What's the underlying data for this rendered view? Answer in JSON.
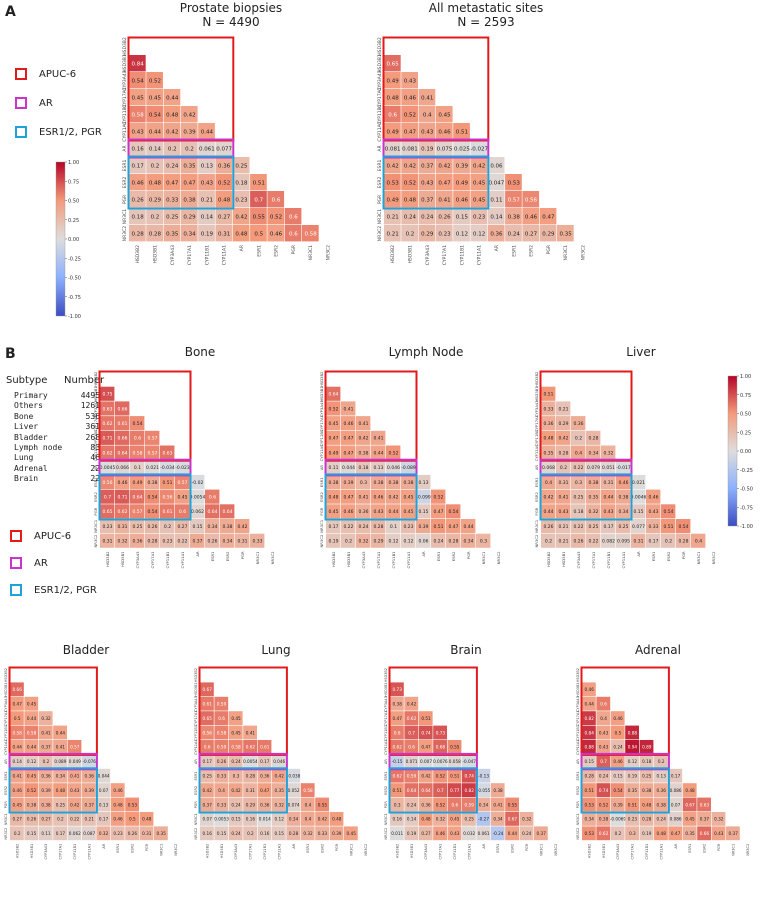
{
  "panels": {
    "a": "A",
    "b": "B"
  },
  "legend": {
    "items": [
      {
        "label": "APUC-6",
        "color": "#e31a1c"
      },
      {
        "label": "AR",
        "color": "#cc33cc"
      },
      {
        "label": "ESR1/2, PGR",
        "color": "#1fa2d9"
      }
    ]
  },
  "colorbar": {
    "ticks": [
      "1.00",
      "0.75",
      "0.50",
      "0.25",
      "0.00",
      "-0.25",
      "-0.50",
      "-0.75",
      "-1.00"
    ]
  },
  "subtype_table": {
    "header": [
      "Subtype",
      "Number"
    ],
    "rows": [
      [
        "Primary",
        "4495"
      ],
      [
        "Others",
        "1261"
      ],
      [
        "Bone",
        "536"
      ],
      [
        "Liver",
        "361"
      ],
      [
        "Bladder",
        "268"
      ],
      [
        "Lymph node",
        "83"
      ],
      [
        "Lung",
        "46"
      ],
      [
        "Adrenal",
        "22"
      ],
      [
        "Brain",
        "22"
      ]
    ]
  },
  "genes": [
    "HSD3B2",
    "HSD3B1",
    "CYP3A43",
    "CYP17A1",
    "CYP11B1",
    "CYP11A1",
    "AR",
    "ESR1",
    "ESR2",
    "PGR",
    "NR3C1",
    "NR3C2"
  ],
  "chart_data": [
    {
      "type": "heatmap",
      "title": "Prostate biopsies",
      "subtitle": "N = 4490",
      "values": [
        [
          0.84
        ],
        [
          0.54,
          0.52
        ],
        [
          0.45,
          0.45,
          0.44
        ],
        [
          0.58,
          0.54,
          0.48,
          0.42
        ],
        [
          0.43,
          0.44,
          0.42,
          0.39,
          0.44
        ],
        [
          0.16,
          0.14,
          0.2,
          0.2,
          0.061,
          0.077
        ],
        [
          0.17,
          0.2,
          0.24,
          0.35,
          0.13,
          0.36,
          0.25
        ],
        [
          0.46,
          0.48,
          0.47,
          0.47,
          0.43,
          0.52,
          0.18,
          0.51
        ],
        [
          0.26,
          0.29,
          0.33,
          0.38,
          0.21,
          0.48,
          0.23,
          0.7,
          0.6
        ],
        [
          0.18,
          0.2,
          0.25,
          0.29,
          0.14,
          0.27,
          0.42,
          0.55,
          0.52,
          0.6
        ],
        [
          0.28,
          0.28,
          0.35,
          0.34,
          0.19,
          0.31,
          0.48,
          0.5,
          0.46,
          0.6,
          0.58
        ]
      ]
    },
    {
      "type": "heatmap",
      "title": "All metastatic sites",
      "subtitle": "N = 2593",
      "values": [
        [
          0.65
        ],
        [
          0.49,
          0.43
        ],
        [
          0.48,
          0.46,
          0.41
        ],
        [
          0.6,
          0.52,
          0.4,
          0.45
        ],
        [
          0.49,
          0.47,
          0.43,
          0.46,
          0.51
        ],
        [
          0.081,
          0.081,
          0.19,
          0.075,
          0.025,
          -0.027
        ],
        [
          0.42,
          0.42,
          0.37,
          0.42,
          0.39,
          0.42,
          0.06
        ],
        [
          0.53,
          0.52,
          0.43,
          0.47,
          0.49,
          0.45,
          0.047,
          0.53
        ],
        [
          0.49,
          0.48,
          0.37,
          0.41,
          0.46,
          0.45,
          0.11,
          0.57,
          0.56
        ],
        [
          0.21,
          0.24,
          0.24,
          0.26,
          0.15,
          0.23,
          0.14,
          0.38,
          0.46,
          0.47
        ],
        [
          0.21,
          0.2,
          0.29,
          0.23,
          0.12,
          0.12,
          0.36,
          0.24,
          0.27,
          0.29,
          0.35
        ]
      ]
    },
    {
      "type": "heatmap",
      "title": "Bone",
      "subtitle": "",
      "values": [
        [
          0.75
        ],
        [
          0.63,
          0.66
        ],
        [
          0.62,
          0.61,
          0.54
        ],
        [
          0.71,
          0.66,
          0.6,
          0.57
        ],
        [
          0.62,
          0.64,
          0.58,
          0.57,
          0.63
        ],
        [
          0.0045,
          0.066,
          0.1,
          0.021,
          -0.034,
          -0.023
        ],
        [
          0.56,
          0.46,
          0.49,
          0.38,
          0.51,
          0.57,
          -0.02
        ],
        [
          0.7,
          0.71,
          0.64,
          0.54,
          0.56,
          0.45,
          0.0054,
          0.6
        ],
        [
          0.65,
          0.62,
          0.57,
          0.54,
          0.61,
          0.6,
          0.062,
          0.64,
          0.64
        ],
        [
          0.23,
          0.31,
          0.25,
          0.26,
          0.2,
          0.27,
          0.15,
          0.34,
          0.38,
          0.42
        ],
        [
          0.31,
          0.32,
          0.36,
          0.28,
          0.23,
          0.22,
          0.37,
          0.26,
          0.34,
          0.31,
          0.33
        ]
      ]
    },
    {
      "type": "heatmap",
      "title": "Lymph Node",
      "subtitle": "",
      "values": [
        [
          0.64
        ],
        [
          0.52,
          0.41
        ],
        [
          0.45,
          0.46,
          0.41
        ],
        [
          0.47,
          0.47,
          0.42,
          0.41
        ],
        [
          0.49,
          0.47,
          0.38,
          0.44,
          0.52
        ],
        [
          0.11,
          0.044,
          0.18,
          0.13,
          0.046,
          -0.089
        ],
        [
          0.38,
          0.39,
          0.3,
          0.38,
          0.38,
          0.38,
          0.13
        ],
        [
          0.48,
          0.47,
          0.41,
          0.46,
          0.42,
          0.45,
          -0.099,
          0.52
        ],
        [
          0.45,
          0.46,
          0.36,
          0.43,
          0.44,
          0.45,
          0.15,
          0.47,
          0.54
        ],
        [
          0.17,
          0.22,
          0.24,
          0.28,
          0.1,
          0.23,
          0.39,
          0.51,
          0.47,
          0.44
        ],
        [
          0.19,
          0.2,
          0.32,
          0.29,
          0.12,
          0.12,
          0.06,
          0.24,
          0.28,
          0.34,
          0.3
        ]
      ]
    },
    {
      "type": "heatmap",
      "title": "Liver",
      "subtitle": "",
      "values": [
        [
          0.51
        ],
        [
          0.33,
          0.21
        ],
        [
          0.36,
          0.29,
          0.36
        ],
        [
          0.48,
          0.42,
          0.2,
          0.28
        ],
        [
          0.35,
          0.28,
          0.4,
          0.34,
          0.32
        ],
        [
          0.068,
          0.2,
          0.22,
          0.079,
          0.051,
          -0.017
        ],
        [
          0.4,
          0.31,
          0.3,
          0.38,
          0.31,
          0.46,
          0.021
        ],
        [
          0.42,
          0.41,
          0.25,
          0.35,
          0.44,
          0.38,
          0.0046,
          0.46
        ],
        [
          0.44,
          0.43,
          0.18,
          0.32,
          0.43,
          0.34,
          0.15,
          0.43,
          0.54
        ],
        [
          0.26,
          0.21,
          0.22,
          0.25,
          0.17,
          0.25,
          0.077,
          0.33,
          0.51,
          0.54
        ],
        [
          0.2,
          0.21,
          0.26,
          0.22,
          0.082,
          0.095,
          0.31,
          0.17,
          0.2,
          0.28,
          0.4
        ]
      ]
    },
    {
      "type": "heatmap",
      "title": "Bladder",
      "subtitle": "",
      "values": [
        [
          0.66
        ],
        [
          0.47,
          0.45
        ],
        [
          0.5,
          0.44,
          0.32
        ],
        [
          0.58,
          0.58,
          0.41,
          0.44
        ],
        [
          0.44,
          0.44,
          0.37,
          0.41,
          0.57
        ],
        [
          0.14,
          0.12,
          0.2,
          0.089,
          0.049,
          -0.076
        ],
        [
          0.41,
          0.45,
          0.36,
          0.34,
          0.41,
          0.36,
          0.044
        ],
        [
          0.46,
          0.52,
          0.39,
          0.48,
          0.43,
          0.39,
          0.07,
          0.46
        ],
        [
          0.45,
          0.38,
          0.38,
          0.25,
          0.42,
          0.37,
          0.13,
          0.48,
          0.53
        ],
        [
          0.27,
          0.26,
          0.27,
          0.2,
          0.22,
          0.21,
          0.17,
          0.46,
          0.5,
          0.48
        ],
        [
          0.2,
          0.15,
          0.11,
          0.17,
          0.062,
          0.087,
          0.32,
          0.23,
          0.26,
          0.31,
          0.35
        ]
      ]
    },
    {
      "type": "heatmap",
      "title": "Lung",
      "subtitle": "",
      "values": [
        [
          0.67
        ],
        [
          0.61,
          0.59
        ],
        [
          0.65,
          0.6,
          0.45
        ],
        [
          0.56,
          0.58,
          0.45,
          0.41
        ],
        [
          0.6,
          0.59,
          0.58,
          0.62,
          0.61
        ],
        [
          0.17,
          0.26,
          0.24,
          0.0054,
          0.17,
          0.046
        ],
        [
          0.25,
          0.33,
          0.3,
          0.28,
          0.36,
          0.42,
          -0.038
        ],
        [
          0.42,
          0.4,
          0.42,
          0.31,
          0.47,
          0.35,
          0.052,
          0.58
        ],
        [
          0.37,
          0.33,
          0.24,
          0.29,
          0.36,
          0.32,
          0.074,
          0.4,
          0.55
        ],
        [
          0.07,
          0.0053,
          0.15,
          0.16,
          0.014,
          0.12,
          0.34,
          0.4,
          0.42,
          0.48
        ],
        [
          0.16,
          0.15,
          0.24,
          0.2,
          0.16,
          0.15,
          0.28,
          0.32,
          0.33,
          0.39,
          0.45
        ]
      ]
    },
    {
      "type": "heatmap",
      "title": "Brain",
      "subtitle": "",
      "values": [
        [
          0.73
        ],
        [
          0.38,
          0.42
        ],
        [
          0.47,
          0.62,
          0.51
        ],
        [
          0.6,
          0.7,
          0.74,
          0.73
        ],
        [
          0.62,
          0.6,
          0.47,
          0.68,
          0.55
        ],
        [
          -0.15,
          0.071,
          0.007,
          0.0076,
          0.058,
          -0.047
        ],
        [
          0.62,
          0.59,
          0.42,
          0.52,
          0.51,
          0.74,
          -0.13
        ],
        [
          0.51,
          0.64,
          0.64,
          0.7,
          0.77,
          0.82,
          -0.055,
          0.38
        ],
        [
          0.3,
          0.24,
          0.36,
          0.52,
          0.6,
          0.59,
          0.34,
          0.41,
          0.55
        ],
        [
          0.16,
          0.14,
          0.48,
          0.32,
          0.45,
          0.25,
          -0.27,
          0.34,
          0.67,
          0.32
        ],
        [
          0.011,
          0.19,
          0.27,
          0.46,
          0.43,
          0.032,
          0.061,
          -0.24,
          0.44,
          0.24,
          0.37
        ]
      ]
    },
    {
      "type": "heatmap",
      "title": "Adrenal",
      "subtitle": "",
      "values": [
        [
          0.46
        ],
        [
          0.44,
          0.6
        ],
        [
          0.82,
          0.4,
          0.46
        ],
        [
          0.84,
          0.43,
          0.5,
          0.88
        ],
        [
          0.88,
          0.43,
          0.24,
          0.94,
          0.89
        ],
        [
          0.15,
          0.7,
          0.46,
          0.12,
          0.18,
          0.2
        ],
        [
          0.28,
          0.24,
          0.15,
          0.19,
          0.25,
          0.13,
          0.17
        ],
        [
          0.51,
          0.74,
          0.54,
          0.35,
          0.38,
          0.36,
          0.086,
          0.48
        ],
        [
          0.53,
          0.52,
          0.39,
          0.51,
          0.48,
          0.38,
          0.07,
          0.67,
          0.63
        ],
        [
          0.34,
          0.38,
          -0.0069,
          0.23,
          0.28,
          0.24,
          0.086,
          0.45,
          0.37,
          0.32
        ],
        [
          0.53,
          0.62,
          0.2,
          0.3,
          0.19,
          0.48,
          0.47,
          0.35,
          0.66,
          0.43,
          0.37
        ]
      ]
    }
  ]
}
